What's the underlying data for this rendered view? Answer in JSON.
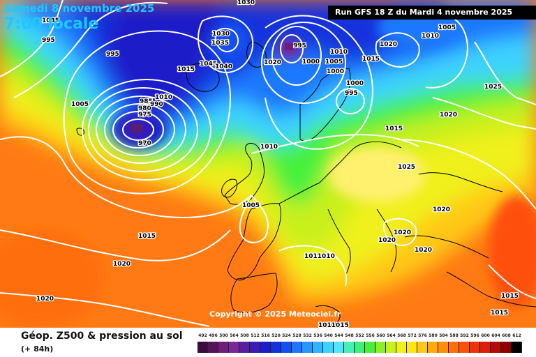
{
  "header": {
    "date": "Samedi 8 novembre 2025",
    "time": "7:00 locale",
    "run": "Run GFS 18 Z du Mardi 4 novembre 2025"
  },
  "footer": {
    "field_title": "Géop. Z500 & pression au sol",
    "lead": "(+ 84h)",
    "copyright": "Copyright © 2025 Meteociel.fr"
  },
  "legend": {
    "ticks": [
      "492",
      "496",
      "500",
      "504",
      "508",
      "512",
      "516",
      "520",
      "524",
      "528",
      "532",
      "536",
      "540",
      "544",
      "548",
      "552",
      "556",
      "560",
      "564",
      "568",
      "572",
      "576",
      "580",
      "584",
      "588",
      "592",
      "596",
      "600",
      "604",
      "608",
      "612"
    ],
    "colors": [
      "#3c0a3c",
      "#55145a",
      "#6e1e78",
      "#7a2896",
      "#5a1ea0",
      "#3c1eb4",
      "#1e1ec8",
      "#1432dc",
      "#1450f0",
      "#1e78ff",
      "#2896ff",
      "#32b4ff",
      "#3cd2ff",
      "#50e6ff",
      "#46f0b4",
      "#3cf078",
      "#46f03c",
      "#8cf028",
      "#c8f01e",
      "#f0f01e",
      "#ffe614",
      "#ffc814",
      "#ffaa0a",
      "#ff8c0a",
      "#ff6e0a",
      "#ff500a",
      "#f0320a",
      "#dc1e0a",
      "#b40a0a",
      "#8c0000",
      "#000000"
    ]
  },
  "isobar_labels": [
    {
      "text": "995"
    },
    {
      "text": "1035"
    },
    {
      "text": "1030"
    },
    {
      "text": "1030"
    },
    {
      "text": "1035"
    },
    {
      "text": "1045"
    },
    {
      "text": "1040"
    },
    {
      "text": "1015"
    },
    {
      "text": "995"
    },
    {
      "text": "1005"
    },
    {
      "text": "985"
    },
    {
      "text": "980"
    },
    {
      "text": "975"
    },
    {
      "text": "990"
    },
    {
      "text": "1010"
    },
    {
      "text": "970"
    },
    {
      "text": "1020"
    },
    {
      "text": "995"
    },
    {
      "text": "1010"
    },
    {
      "text": "1000"
    },
    {
      "text": "1005"
    },
    {
      "text": "1000"
    },
    {
      "text": "1000"
    },
    {
      "text": "995"
    },
    {
      "text": "1015"
    },
    {
      "text": "1020"
    },
    {
      "text": "1010"
    },
    {
      "text": "1005"
    },
    {
      "text": "1025"
    },
    {
      "text": "1020"
    },
    {
      "text": "1015"
    },
    {
      "text": "1025"
    },
    {
      "text": "1010"
    },
    {
      "text": "1005"
    },
    {
      "text": "1015"
    },
    {
      "text": "1020"
    },
    {
      "text": "1020"
    },
    {
      "text": "1020"
    },
    {
      "text": "1020"
    },
    {
      "text": "1020"
    },
    {
      "text": "1011010"
    },
    {
      "text": "1020"
    },
    {
      "text": "1015"
    },
    {
      "text": "1015"
    },
    {
      "text": "1011015"
    }
  ]
}
